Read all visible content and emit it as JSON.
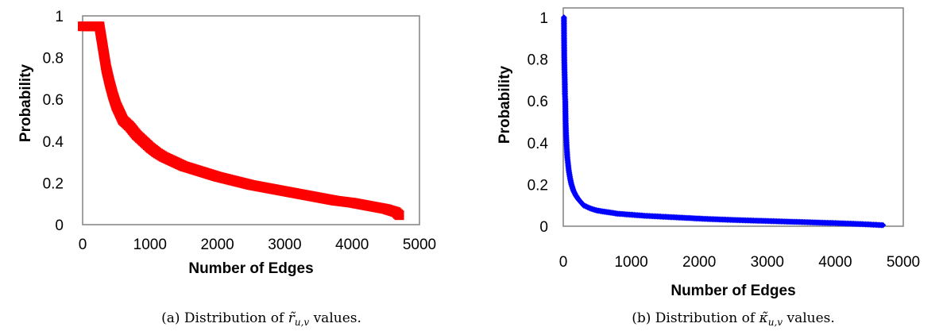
{
  "chart_data": [
    {
      "type": "scatter",
      "caption": "(a) Distribution of r̃u,v values.",
      "caption_parts": {
        "prefix": "(a) Distribution of ",
        "symbol": "r̃",
        "subscript": "u,v",
        "suffix": " values."
      },
      "xlabel": "Number of Edges",
      "ylabel": "Probability",
      "xlim": [
        0,
        5000
      ],
      "ylim": [
        0,
        1
      ],
      "x_ticks": [
        0,
        1000,
        2000,
        3000,
        4000,
        5000
      ],
      "y_ticks": [
        0,
        0.2,
        0.4,
        0.6,
        0.8,
        1
      ],
      "y_tick_labels": [
        "0",
        "0.2",
        "0.4",
        "0.6",
        "0.8",
        "1"
      ],
      "grid": false,
      "legend": "none",
      "color": "#ff0000",
      "marker": "square",
      "series": [
        {
          "x": [
            0,
            100,
            200,
            250,
            300,
            350,
            400,
            450,
            500,
            600,
            700,
            800,
            900,
            1000,
            1100,
            1200,
            1300,
            1400,
            1500,
            1750,
            2000,
            2250,
            2500,
            2750,
            3000,
            3250,
            3500,
            3750,
            4000,
            4250,
            4500,
            4600,
            4650,
            4700
          ],
          "y": [
            0.95,
            0.95,
            0.95,
            0.95,
            0.85,
            0.75,
            0.68,
            0.62,
            0.57,
            0.5,
            0.47,
            0.43,
            0.4,
            0.37,
            0.345,
            0.325,
            0.31,
            0.295,
            0.28,
            0.255,
            0.23,
            0.21,
            0.19,
            0.175,
            0.16,
            0.145,
            0.13,
            0.115,
            0.105,
            0.09,
            0.075,
            0.065,
            0.06,
            0.045
          ]
        }
      ]
    },
    {
      "type": "scatter",
      "caption": "(b) Distribution of κ̃u,v values.",
      "caption_parts": {
        "prefix": "(b) Distribution of ",
        "symbol": "κ̃",
        "subscript": "u,v",
        "suffix": " values."
      },
      "xlabel": "Number of Edges",
      "ylabel": "Probability",
      "xlim": [
        0,
        5000
      ],
      "ylim": [
        0,
        1
      ],
      "x_ticks": [
        0,
        1000,
        2000,
        3000,
        4000,
        5000
      ],
      "y_ticks": [
        0,
        0.2,
        0.4,
        0.6,
        0.8,
        1
      ],
      "y_tick_labels": [
        "0",
        "0.2",
        "0.4",
        "0.6",
        "0.8",
        "1"
      ],
      "grid": false,
      "legend": "none",
      "color": "#0000ff",
      "marker": "diamond",
      "series": [
        {
          "x": [
            10,
            12,
            15,
            18,
            22,
            25,
            30,
            35,
            40,
            50,
            60,
            70,
            80,
            100,
            120,
            150,
            180,
            220,
            260,
            300,
            400,
            500,
            600,
            700,
            800,
            1000,
            1200,
            1500,
            1800,
            2100,
            2500,
            3000,
            3500,
            4000,
            4400,
            4700
          ],
          "y": [
            1.0,
            0.9,
            0.8,
            0.75,
            0.7,
            0.63,
            0.6,
            0.5,
            0.45,
            0.38,
            0.33,
            0.3,
            0.27,
            0.23,
            0.2,
            0.17,
            0.15,
            0.13,
            0.115,
            0.1,
            0.085,
            0.075,
            0.07,
            0.065,
            0.06,
            0.055,
            0.05,
            0.045,
            0.04,
            0.035,
            0.03,
            0.025,
            0.02,
            0.015,
            0.01,
            0.005
          ]
        }
      ]
    }
  ]
}
